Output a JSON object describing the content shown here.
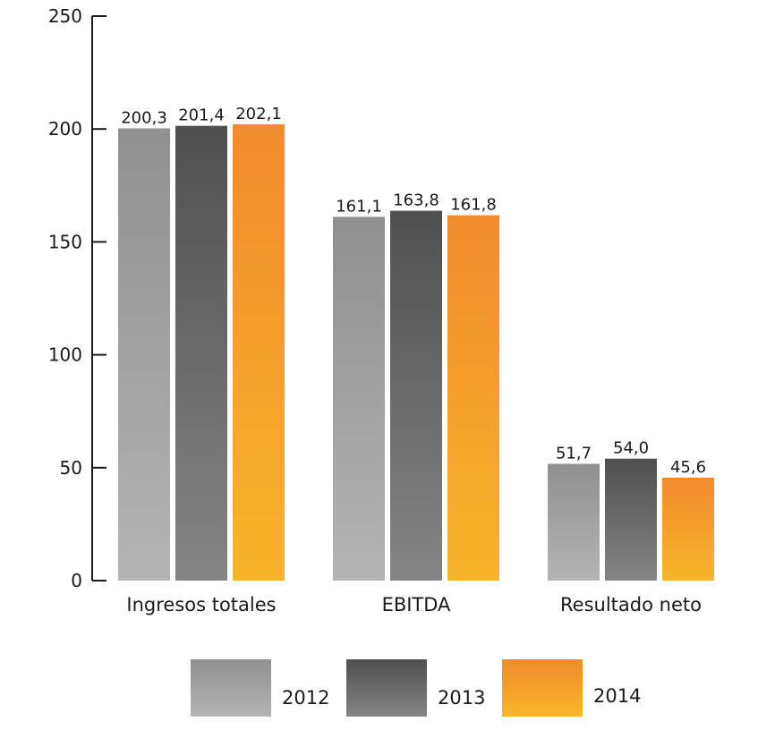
{
  "chart_data": {
    "type": "bar",
    "categories": [
      "Ingresos totales",
      "EBITDA",
      "Resultado neto"
    ],
    "series": [
      {
        "name": "2012",
        "values": [
          200.3,
          161.1,
          51.7
        ],
        "labels": [
          "200,3",
          "161,1",
          "51,7"
        ],
        "color_top": "#909090",
        "color_bottom": "#b4b4b4"
      },
      {
        "name": "2013",
        "values": [
          201.4,
          163.8,
          54.0
        ],
        "labels": [
          "201,4",
          "163,8",
          "54,0"
        ],
        "color_top": "#4f4f4f",
        "color_bottom": "#858585"
      },
      {
        "name": "2014",
        "values": [
          202.1,
          161.8,
          45.6
        ],
        "labels": [
          "202,1",
          "161,8",
          "45,6"
        ],
        "color_top": "#f08c2c",
        "color_bottom": "#f8b52a"
      }
    ],
    "ylim": [
      0,
      250
    ],
    "yticks": [
      0,
      50,
      100,
      150,
      200,
      250
    ],
    "ytick_labels": [
      "0",
      "50",
      "100",
      "150",
      "200",
      "250"
    ],
    "grid": false,
    "legend_position": "bottom-center"
  }
}
